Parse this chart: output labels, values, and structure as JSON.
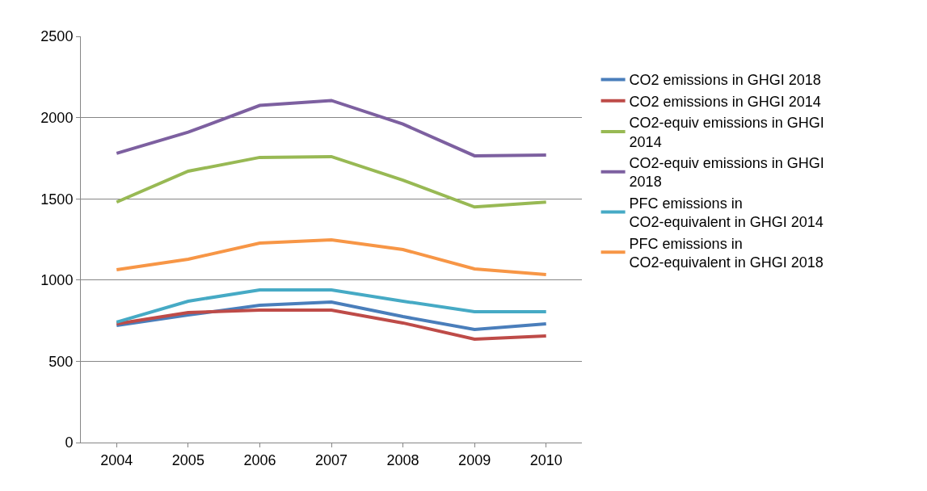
{
  "chart_data": {
    "type": "line",
    "categories": [
      "2004",
      "2005",
      "2006",
      "2007",
      "2008",
      "2009",
      "2010"
    ],
    "series": [
      {
        "name": "CO2 emissions in GHGI 2018",
        "color": "#4a7ebb",
        "values": [
          720,
          785,
          845,
          865,
          775,
          696,
          731
        ]
      },
      {
        "name": "CO2 emissions in GHGI 2014",
        "color": "#be4b48",
        "values": [
          731,
          800,
          815,
          815,
          736,
          636,
          656
        ]
      },
      {
        "name": "CO2-equiv emissions in GHGI 2014",
        "color": "#98b954",
        "values": [
          1480,
          1670,
          1755,
          1760,
          1615,
          1450,
          1480
        ]
      },
      {
        "name": "CO2-equiv emissions in GHGI 2018",
        "color": "#7d60a0",
        "values": [
          1780,
          1910,
          2075,
          2105,
          1960,
          1765,
          1770
        ]
      },
      {
        "name": "PFC emissions in CO2-equivalent in GHGI 2014",
        "color": "#46aac5",
        "values": [
          741,
          870,
          939,
          939,
          870,
          805,
          805
        ]
      },
      {
        "name": "PFC emissions in CO2-equivalent in GHGI 2018",
        "color": "#f79646",
        "values": [
          1064,
          1128,
          1228,
          1247,
          1188,
          1069,
          1034
        ]
      }
    ],
    "ylim": [
      0,
      2500
    ],
    "yticks": [
      0,
      500,
      1000,
      1500,
      2000,
      2500
    ],
    "grid": "y",
    "legend": "right",
    "marker": "none",
    "line_style": "solid"
  }
}
